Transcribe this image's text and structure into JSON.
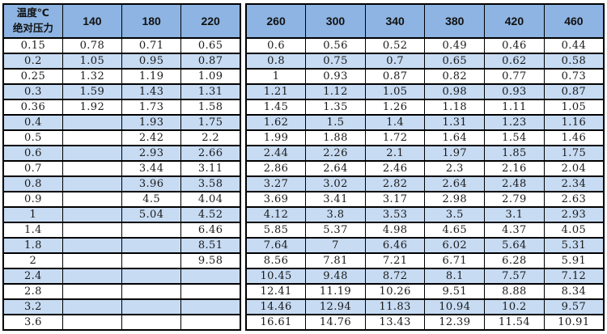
{
  "colors": {
    "page_bg": "#FFFFFF",
    "header_bg": "#8DB4E2",
    "alt_row_bg": "#C7DBF3",
    "border": "#000000",
    "text": "#1A1A1A",
    "header_text": "#111111"
  },
  "chart_data": {
    "type": "table",
    "title": "",
    "corner_header": {
      "line1": "温度℃",
      "line2": "绝对压力"
    },
    "column_axis_label": "温度℃",
    "row_axis_label": "绝对压力",
    "columns": [
      "140",
      "180",
      "220",
      "260",
      "300",
      "340",
      "380",
      "420",
      "460"
    ],
    "rows": [
      {
        "pressure": "0.15",
        "values": [
          "0.78",
          "0.71",
          "0.65",
          "0.6",
          "0.56",
          "0.52",
          "0.49",
          "0.46",
          "0.44"
        ]
      },
      {
        "pressure": "0.2",
        "values": [
          "1.05",
          "0.95",
          "0.87",
          "0.8",
          "0.75",
          "0.7",
          "0.65",
          "0.62",
          "0.58"
        ]
      },
      {
        "pressure": "0.25",
        "values": [
          "1.32",
          "1.19",
          "1.09",
          "1",
          "0.93",
          "0.87",
          "0.82",
          "0.77",
          "0.73"
        ]
      },
      {
        "pressure": "0.3",
        "values": [
          "1.59",
          "1.43",
          "1.31",
          "1.21",
          "1.12",
          "1.05",
          "0.98",
          "0.93",
          "0.87"
        ]
      },
      {
        "pressure": "0.36",
        "values": [
          "1.92",
          "1.73",
          "1.58",
          "1.45",
          "1.35",
          "1.26",
          "1.18",
          "1.11",
          "1.05"
        ]
      },
      {
        "pressure": "0.4",
        "values": [
          "",
          "1.93",
          "1.75",
          "1.62",
          "1.5",
          "1.4",
          "1.31",
          "1.23",
          "1.16"
        ]
      },
      {
        "pressure": "0.5",
        "values": [
          "",
          "2.42",
          "2.2",
          "1.99",
          "1.88",
          "1.72",
          "1.64",
          "1.54",
          "1.46"
        ]
      },
      {
        "pressure": "0.6",
        "values": [
          "",
          "2.93",
          "2.66",
          "2.44",
          "2.26",
          "2.1",
          "1.97",
          "1.85",
          "1.75"
        ]
      },
      {
        "pressure": "0.7",
        "values": [
          "",
          "3.44",
          "3.11",
          "2.86",
          "2.64",
          "2.46",
          "2.3",
          "2.16",
          "2.04"
        ]
      },
      {
        "pressure": "0.8",
        "values": [
          "",
          "3.96",
          "3.58",
          "3.27",
          "3.02",
          "2.82",
          "2.64",
          "2.48",
          "2.34"
        ]
      },
      {
        "pressure": "0.9",
        "values": [
          "",
          "4.5",
          "4.04",
          "3.69",
          "3.41",
          "3.17",
          "2.98",
          "2.79",
          "2.63"
        ]
      },
      {
        "pressure": "1",
        "values": [
          "",
          "5.04",
          "4.52",
          "4.12",
          "3.8",
          "3.53",
          "3.5",
          "3.1",
          "2.93"
        ]
      },
      {
        "pressure": "1.4",
        "values": [
          "",
          "",
          "6.46",
          "5.85",
          "5.37",
          "4.98",
          "4.65",
          "4.37",
          "4.05"
        ]
      },
      {
        "pressure": "1.8",
        "values": [
          "",
          "",
          "8.51",
          "7.64",
          "7",
          "6.46",
          "6.02",
          "5.64",
          "5.31"
        ]
      },
      {
        "pressure": "2",
        "values": [
          "",
          "",
          "9.58",
          "8.56",
          "7.81",
          "7.21",
          "6.71",
          "6.28",
          "5.91"
        ]
      },
      {
        "pressure": "2.4",
        "values": [
          "",
          "",
          "",
          "10.45",
          "9.48",
          "8.72",
          "8.1",
          "7.57",
          "7.12"
        ]
      },
      {
        "pressure": "2.8",
        "values": [
          "",
          "",
          "",
          "12.41",
          "11.19",
          "10.26",
          "9.51",
          "8.88",
          "8.34"
        ]
      },
      {
        "pressure": "3.2",
        "values": [
          "",
          "",
          "",
          "14.46",
          "12.94",
          "11.83",
          "10.94",
          "10.2",
          "9.57"
        ]
      },
      {
        "pressure": "3.6",
        "values": [
          "",
          "",
          "",
          "16.61",
          "14.76",
          "13.43",
          "12.39",
          "11.54",
          "10.91"
        ]
      }
    ],
    "layout": {
      "split_after_column_index": 2,
      "alternate_row_shading": true,
      "grid": true,
      "legend": "none"
    }
  }
}
